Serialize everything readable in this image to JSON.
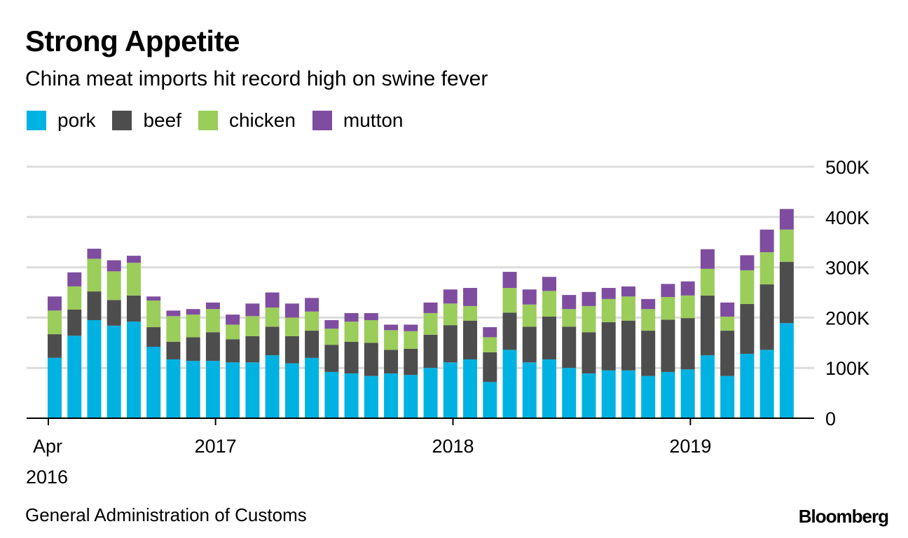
{
  "header": {
    "title": "Strong Appetite",
    "subtitle": "China meat imports hit record high on swine fever"
  },
  "footer": {
    "source": "General Administration of Customs",
    "brand": "Bloomberg"
  },
  "chart_data": {
    "type": "bar",
    "stacked": true,
    "title": "Strong Appetite",
    "subtitle": "China meat imports hit record high on swine fever",
    "xlabel": "",
    "ylabel": "",
    "ylim": [
      0,
      500000
    ],
    "y_ticks": [
      0,
      100000,
      200000,
      300000,
      400000,
      500000
    ],
    "y_tick_labels": [
      "0",
      "100K",
      "200K",
      "300K",
      "400K",
      "500K"
    ],
    "y_axis_position": "right",
    "grid": true,
    "legend_position": "top-left",
    "x_tick_labels": [
      {
        "label": "Apr",
        "sublabel": "2016",
        "at_index": 0,
        "offset": 0.0
      },
      {
        "label": "2017",
        "sublabel": "",
        "at_index": 8,
        "offset": 0.45
      },
      {
        "label": "2018",
        "sublabel": "",
        "at_index": 20,
        "offset": 0.45
      },
      {
        "label": "2019",
        "sublabel": "",
        "at_index": 32,
        "offset": 0.45
      }
    ],
    "categories": [
      "2016-04",
      "2016-05",
      "2016-06",
      "2016-07",
      "2016-08",
      "2016-09",
      "2016-10",
      "2016-11",
      "2016-12",
      "2017-01",
      "2017-02",
      "2017-03",
      "2017-04",
      "2017-05",
      "2017-06",
      "2017-07",
      "2017-08",
      "2017-09",
      "2017-10",
      "2017-11",
      "2017-12",
      "2018-01",
      "2018-02",
      "2018-03",
      "2018-04",
      "2018-05",
      "2018-06",
      "2018-07",
      "2018-08",
      "2018-09",
      "2018-10",
      "2018-11",
      "2018-12",
      "2019-01",
      "2019-02",
      "2019-03",
      "2019-04",
      "2019-05"
    ],
    "series": [
      {
        "name": "pork",
        "color": "#00B2E2",
        "values": [
          120000,
          164000,
          195000,
          184000,
          192000,
          142000,
          117000,
          114000,
          114000,
          111000,
          111000,
          125000,
          109000,
          120000,
          92000,
          89000,
          84000,
          89000,
          86000,
          100000,
          111000,
          117000,
          72000,
          136000,
          111000,
          117000,
          100000,
          89000,
          95000,
          95000,
          84000,
          92000,
          97000,
          125000,
          84000,
          128000,
          136000,
          189000
        ]
      },
      {
        "name": "beef",
        "color": "#4D4D4D",
        "values": [
          47000,
          52000,
          57000,
          51000,
          52000,
          39000,
          35000,
          47000,
          57000,
          46000,
          52000,
          57000,
          54000,
          54000,
          54000,
          63000,
          66000,
          47000,
          52000,
          66000,
          74000,
          77000,
          59000,
          74000,
          71000,
          85000,
          82000,
          82000,
          96000,
          99000,
          90000,
          104000,
          102000,
          119000,
          90000,
          99000,
          130000,
          122000
        ]
      },
      {
        "name": "chicken",
        "color": "#9BCD5A",
        "values": [
          47000,
          46000,
          65000,
          57000,
          65000,
          53000,
          51000,
          45000,
          46000,
          29000,
          40000,
          38000,
          37000,
          38000,
          32000,
          40000,
          45000,
          39000,
          35000,
          43000,
          43000,
          29000,
          30000,
          49000,
          44000,
          51000,
          35000,
          52000,
          46000,
          48000,
          43000,
          45000,
          45000,
          53000,
          28000,
          67000,
          64000,
          64000
        ]
      },
      {
        "name": "mutton",
        "color": "#7F4DA0",
        "values": [
          28000,
          28000,
          20000,
          22000,
          14000,
          8000,
          11000,
          11000,
          13000,
          20000,
          25000,
          30000,
          28000,
          27000,
          17000,
          17000,
          14000,
          11000,
          13000,
          21000,
          28000,
          36000,
          20000,
          32000,
          30000,
          28000,
          28000,
          28000,
          22000,
          20000,
          20000,
          26000,
          28000,
          39000,
          28000,
          30000,
          45000,
          41000
        ]
      }
    ]
  }
}
